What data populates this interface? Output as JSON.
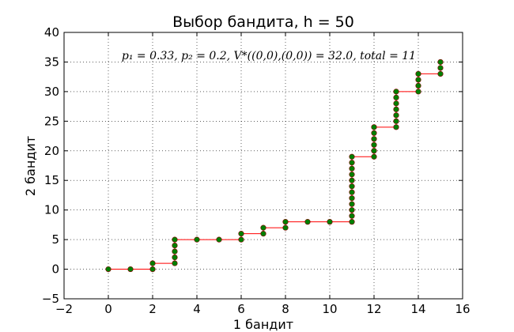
{
  "chart_data": {
    "type": "scatter",
    "title": "Выбор бандита, h = 50",
    "xlabel": "1 бандит",
    "ylabel": "2 бандит",
    "xlim": [
      -2,
      16
    ],
    "ylim": [
      -5,
      40
    ],
    "xticks": [
      -2,
      0,
      2,
      4,
      6,
      8,
      10,
      12,
      14,
      16
    ],
    "yticks": [
      -5,
      0,
      5,
      10,
      15,
      20,
      25,
      30,
      35,
      40
    ],
    "grid": true,
    "annotation": "p₁ = 0.33, p₂ = 0.2, V*((0,0),(0,0)) = 32.0,   total = 11",
    "line_color": "#ff0000",
    "point_color": "#007f00",
    "point_edge_color": "#8b0000",
    "points": [
      [
        0,
        0
      ],
      [
        1,
        0
      ],
      [
        2,
        0
      ],
      [
        2,
        1
      ],
      [
        3,
        1
      ],
      [
        3,
        2
      ],
      [
        3,
        3
      ],
      [
        3,
        4
      ],
      [
        3,
        5
      ],
      [
        4,
        5
      ],
      [
        5,
        5
      ],
      [
        6,
        5
      ],
      [
        6,
        6
      ],
      [
        7,
        6
      ],
      [
        7,
        7
      ],
      [
        8,
        7
      ],
      [
        8,
        8
      ],
      [
        9,
        8
      ],
      [
        10,
        8
      ],
      [
        11,
        8
      ],
      [
        11,
        9
      ],
      [
        11,
        10
      ],
      [
        11,
        11
      ],
      [
        11,
        12
      ],
      [
        11,
        13
      ],
      [
        11,
        14
      ],
      [
        11,
        15
      ],
      [
        11,
        16
      ],
      [
        11,
        17
      ],
      [
        11,
        18
      ],
      [
        11,
        19
      ],
      [
        12,
        19
      ],
      [
        12,
        20
      ],
      [
        12,
        21
      ],
      [
        12,
        22
      ],
      [
        12,
        23
      ],
      [
        12,
        24
      ],
      [
        13,
        24
      ],
      [
        13,
        25
      ],
      [
        13,
        26
      ],
      [
        13,
        27
      ],
      [
        13,
        28
      ],
      [
        13,
        29
      ],
      [
        13,
        30
      ],
      [
        14,
        30
      ],
      [
        14,
        31
      ],
      [
        14,
        32
      ],
      [
        14,
        33
      ],
      [
        15,
        33
      ],
      [
        15,
        34
      ],
      [
        15,
        35
      ]
    ]
  }
}
